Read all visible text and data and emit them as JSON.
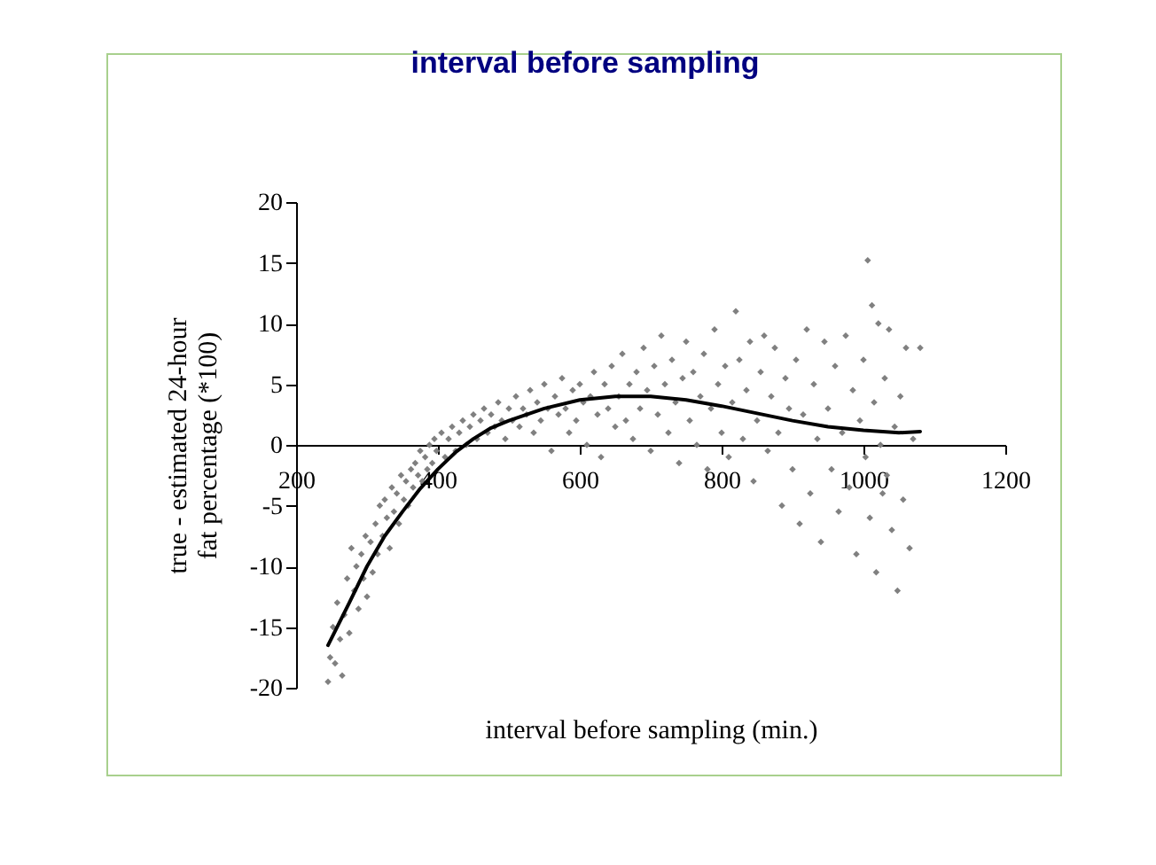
{
  "chart_data": {
    "type": "scatter",
    "title": "interval before sampling",
    "xlabel": "interval before sampling (min.)",
    "ylabel": "true - estimated 24-hour fat percentage (*100)",
    "xlim": [
      200,
      1200
    ],
    "xticks": [
      200,
      400,
      600,
      800,
      1000,
      1200
    ],
    "ylim": [
      -20,
      20
    ],
    "yticks": [
      -20,
      -15,
      -10,
      -5,
      0,
      5,
      10,
      15,
      20
    ],
    "series": [
      {
        "type": "scatter",
        "marker": "diamond",
        "color": "#808080",
        "x": [
          245,
          248,
          252,
          255,
          258,
          262,
          265,
          268,
          272,
          275,
          278,
          282,
          285,
          288,
          292,
          295,
          298,
          300,
          305,
          308,
          312,
          315,
          318,
          322,
          325,
          328,
          332,
          335,
          338,
          342,
          345,
          348,
          352,
          355,
          358,
          362,
          365,
          368,
          372,
          375,
          378,
          382,
          385,
          388,
          392,
          395,
          398,
          405,
          410,
          415,
          420,
          425,
          430,
          435,
          440,
          445,
          450,
          455,
          460,
          465,
          470,
          475,
          480,
          485,
          490,
          495,
          500,
          505,
          510,
          515,
          520,
          525,
          530,
          535,
          540,
          545,
          550,
          555,
          560,
          565,
          570,
          575,
          580,
          585,
          590,
          595,
          600,
          605,
          610,
          615,
          620,
          625,
          630,
          635,
          640,
          645,
          650,
          655,
          660,
          665,
          670,
          675,
          680,
          685,
          690,
          695,
          700,
          705,
          710,
          715,
          720,
          725,
          730,
          735,
          740,
          745,
          750,
          755,
          760,
          765,
          770,
          775,
          780,
          785,
          790,
          795,
          800,
          805,
          810,
          815,
          820,
          825,
          830,
          835,
          840,
          845,
          850,
          855,
          860,
          865,
          870,
          875,
          880,
          885,
          890,
          895,
          900,
          905,
          910,
          915,
          920,
          925,
          930,
          935,
          940,
          945,
          950,
          955,
          960,
          965,
          970,
          975,
          980,
          985,
          990,
          995,
          1000,
          1003,
          1006,
          1009,
          1012,
          1015,
          1018,
          1021,
          1024,
          1027,
          1030,
          1033,
          1036,
          1040,
          1044,
          1048,
          1052,
          1056,
          1060,
          1065,
          1070,
          1080
        ],
        "values": [
          -19.5,
          -17.5,
          -15,
          -18,
          -13,
          -16,
          -19,
          -14,
          -11,
          -15.5,
          -8.5,
          -12,
          -10,
          -13.5,
          -9,
          -11,
          -7.5,
          -12.5,
          -8,
          -10.5,
          -6.5,
          -9,
          -5,
          -7.5,
          -4.5,
          -6,
          -8.5,
          -3.5,
          -5.5,
          -4,
          -6.5,
          -2.5,
          -4.5,
          -3,
          -5,
          -2,
          -3.5,
          -1.5,
          -2.5,
          -0.5,
          -3,
          -1,
          -2,
          0,
          -1.5,
          0.5,
          -0.5,
          1,
          -1,
          0.5,
          1.5,
          -0.5,
          1,
          2,
          0,
          1.5,
          2.5,
          0.5,
          2,
          3,
          1,
          2.5,
          1.5,
          3.5,
          2,
          0.5,
          3,
          2,
          4,
          1.5,
          3,
          2.5,
          4.5,
          1,
          3.5,
          2,
          5,
          3,
          -0.5,
          4,
          2.5,
          5.5,
          3,
          1,
          4.5,
          2,
          5,
          3.5,
          0,
          4,
          6,
          2.5,
          -1,
          5,
          3,
          6.5,
          1.5,
          4,
          7.5,
          2,
          5,
          0.5,
          6,
          3,
          8,
          4.5,
          -0.5,
          6.5,
          2.5,
          9,
          5,
          1,
          7,
          3.5,
          -1.5,
          5.5,
          8.5,
          2,
          6,
          0,
          4,
          7.5,
          -2,
          3,
          9.5,
          5,
          1,
          6.5,
          -1,
          3.5,
          11,
          7,
          0.5,
          4.5,
          8.5,
          -3,
          2,
          6,
          9,
          -0.5,
          4,
          8,
          1,
          -5,
          5.5,
          3,
          -2,
          7,
          -6.5,
          2.5,
          9.5,
          -4,
          5,
          0.5,
          -8,
          8.5,
          3,
          -2,
          6.5,
          -5.5,
          1,
          9,
          -3.5,
          4.5,
          -9,
          2,
          7,
          -1,
          15.2,
          -6,
          11.5,
          3.5,
          -10.5,
          10,
          0,
          -4,
          5.5,
          -2.5,
          9.5,
          -7,
          1.5,
          -12,
          4,
          -4.5,
          8,
          -8.5,
          0.5,
          8
        ]
      },
      {
        "type": "line",
        "marker": "none",
        "color": "#000000",
        "x": [
          245,
          275,
          300,
          325,
          350,
          375,
          400,
          425,
          450,
          475,
          500,
          550,
          600,
          650,
          700,
          750,
          800,
          850,
          900,
          950,
          1000,
          1050,
          1080
        ],
        "values": [
          -16.5,
          -13,
          -10,
          -7.5,
          -5.5,
          -3.6,
          -2,
          -0.6,
          0.5,
          1.4,
          2,
          3,
          3.7,
          4,
          4,
          3.7,
          3.2,
          2.6,
          2,
          1.5,
          1.2,
          1,
          1.1
        ]
      }
    ]
  }
}
